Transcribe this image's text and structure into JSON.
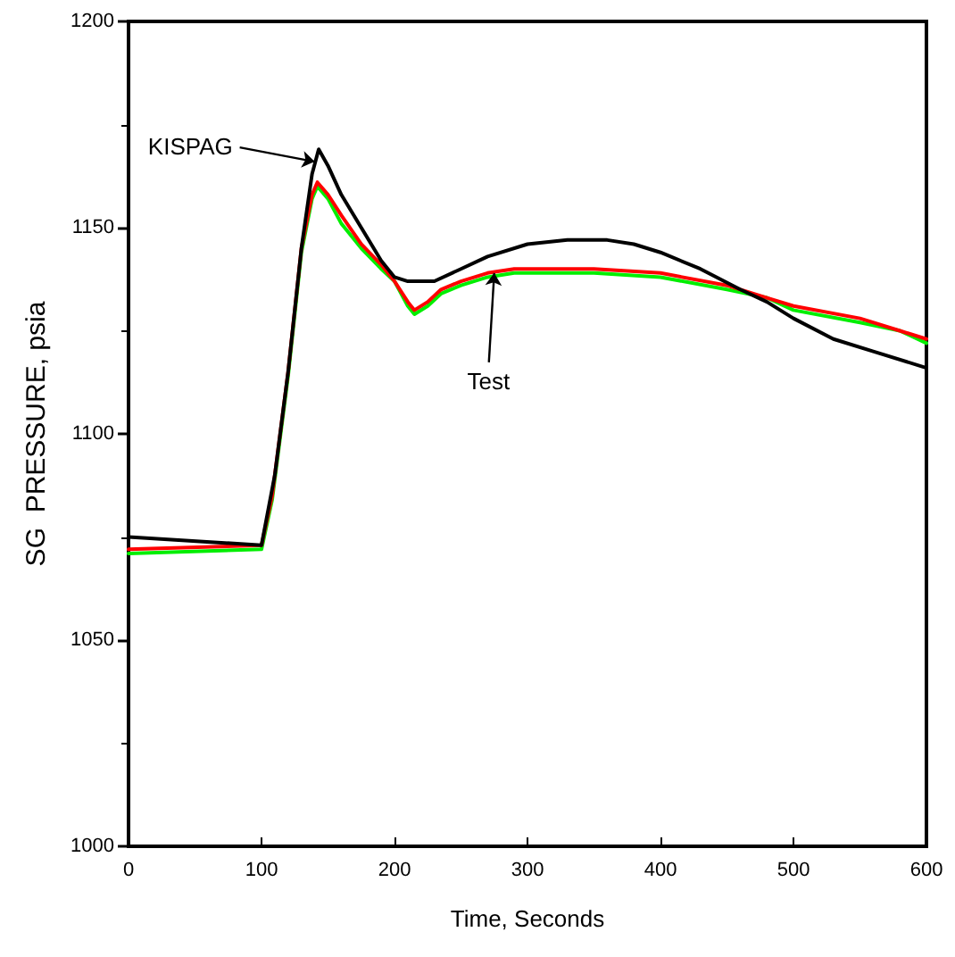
{
  "chart_data": {
    "type": "line",
    "xlabel": "Time, Seconds",
    "ylabel": "SG  PRESSURE, psia",
    "xlim": [
      0,
      600
    ],
    "xticks": [
      0,
      100,
      200,
      300,
      400,
      500,
      600
    ],
    "ylim": [
      1000,
      1200
    ],
    "yticks": [
      1000,
      1050,
      1100,
      1150,
      1200
    ],
    "grid": false,
    "marker": "none",
    "line_style": "solid",
    "series": [
      {
        "color": "#00ee00",
        "x": [
          0,
          100,
          108,
          120,
          130,
          138,
          142,
          150,
          160,
          175,
          190,
          200,
          210,
          215,
          225,
          235,
          250,
          270,
          290,
          350,
          400,
          450,
          480,
          500,
          550,
          580,
          600
        ],
        "values": [
          1071,
          1072,
          1084,
          1114,
          1144,
          1157,
          1160,
          1157,
          1151,
          1145,
          1140,
          1137,
          1131,
          1129,
          1131,
          1134,
          1136,
          1138,
          1139,
          1139,
          1138,
          1135,
          1133,
          1130,
          1127,
          1125,
          1122
        ]
      },
      {
        "color": "#ff0000",
        "x": [
          0,
          100,
          108,
          120,
          130,
          138,
          142,
          150,
          160,
          175,
          190,
          200,
          210,
          215,
          225,
          235,
          250,
          270,
          290,
          350,
          400,
          450,
          480,
          500,
          550,
          580,
          600
        ],
        "values": [
          1072,
          1073,
          1085,
          1115,
          1145,
          1158,
          1161,
          1158,
          1153,
          1146,
          1141,
          1137,
          1132,
          1130,
          1132,
          1135,
          1137,
          1139,
          1140,
          1140,
          1139,
          1136,
          1133,
          1131,
          1128,
          1125,
          1123
        ]
      },
      {
        "color": "#000000",
        "x": [
          0,
          100,
          110,
          120,
          130,
          138,
          143,
          150,
          160,
          175,
          190,
          200,
          210,
          230,
          250,
          270,
          300,
          330,
          360,
          380,
          400,
          430,
          460,
          480,
          500,
          530,
          560,
          600
        ],
        "values": [
          1075,
          1073,
          1090,
          1115,
          1145,
          1163,
          1169,
          1165,
          1158,
          1150,
          1142,
          1138,
          1137,
          1137,
          1140,
          1143,
          1146,
          1147,
          1147,
          1146,
          1144,
          1140,
          1135,
          1132,
          1128,
          1123,
          1120,
          1116
        ]
      }
    ],
    "annotations": [
      {
        "text": "KISPAG",
        "x": 140,
        "y": 1166
      },
      {
        "text": "Test",
        "x": 275,
        "y": 1139
      }
    ]
  }
}
